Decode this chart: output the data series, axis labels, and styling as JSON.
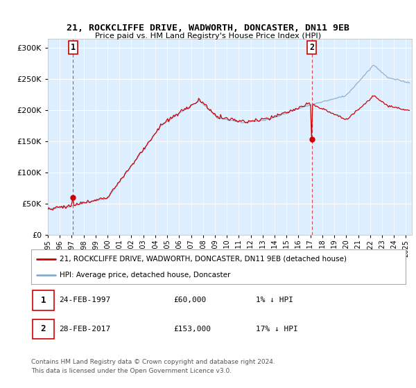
{
  "title": "21, ROCKCLIFFE DRIVE, WADWORTH, DONCASTER, DN11 9EB",
  "subtitle": "Price paid vs. HM Land Registry's House Price Index (HPI)",
  "ytick_values": [
    0,
    50000,
    100000,
    150000,
    200000,
    250000,
    300000
  ],
  "ylim": [
    0,
    315000
  ],
  "xlim_start": 1995.0,
  "xlim_end": 2025.5,
  "transaction1_x": 1997.12,
  "transaction1_y": 60000,
  "transaction2_x": 2017.12,
  "transaction2_y": 153000,
  "legend_property": "21, ROCKCLIFFE DRIVE, WADWORTH, DONCASTER, DN11 9EB (detached house)",
  "legend_hpi": "HPI: Average price, detached house, Doncaster",
  "footnote1": "Contains HM Land Registry data © Crown copyright and database right 2024.",
  "footnote2": "This data is licensed under the Open Government Licence v3.0.",
  "property_color": "#cc0000",
  "hpi_color": "#88aacc",
  "bg_plot": "#ddeeff",
  "bg_fig": "#ffffff",
  "grid_color": "#ffffff",
  "dashed_color": "#cc0000"
}
